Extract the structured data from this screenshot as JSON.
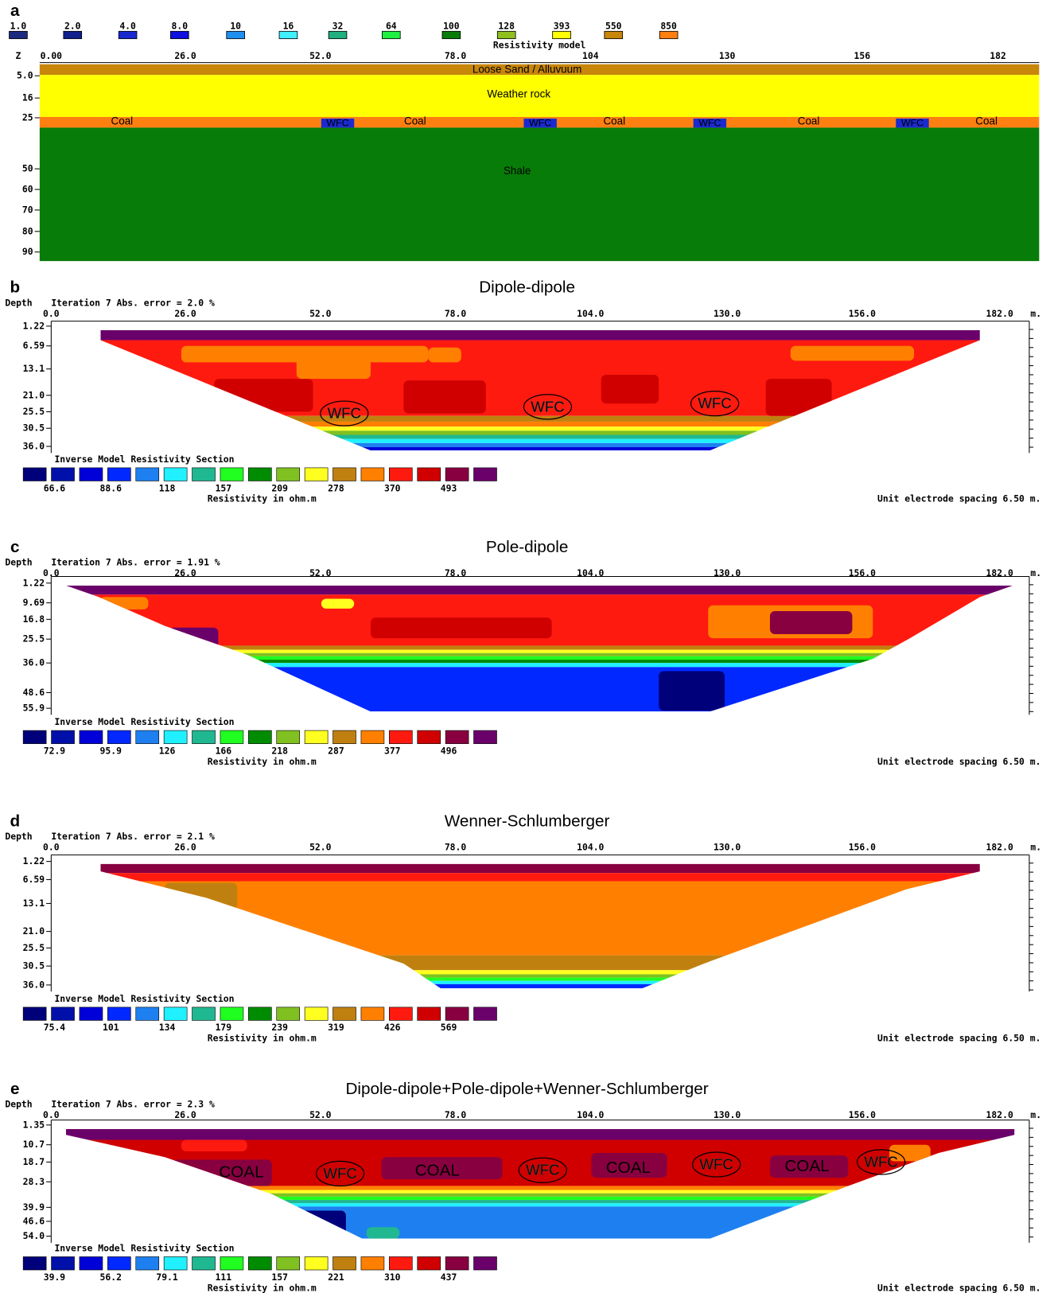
{
  "scale_colors": [
    "#00007a",
    "#0010a8",
    "#0000d8",
    "#0028ff",
    "#1e80f0",
    "#20f0ff",
    "#20b890",
    "#20ff20",
    "#008c00",
    "#80c020",
    "#ffff20",
    "#c08010",
    "#ff8000",
    "#ff1a10",
    "#d00000",
    "#880040",
    "#6a006a"
  ],
  "panel_a": {
    "letter": "a",
    "legend": [
      {
        "label": "1.0",
        "color": "#1c2a80"
      },
      {
        "label": "2.0",
        "color": "#10208c"
      },
      {
        "label": "4.0",
        "color": "#1a2ad0"
      },
      {
        "label": "8.0",
        "color": "#1010e0"
      },
      {
        "label": "10",
        "color": "#2090f0"
      },
      {
        "label": "16",
        "color": "#40f0ff"
      },
      {
        "label": "32",
        "color": "#20b080"
      },
      {
        "label": "64",
        "color": "#20f040"
      },
      {
        "label": "100",
        "color": "#087c08"
      },
      {
        "label": "128",
        "color": "#90c020"
      },
      {
        "label": "393",
        "color": "#ffff00"
      },
      {
        "label": "550",
        "color": "#c8860a"
      },
      {
        "label": "850",
        "color": "#ff8010"
      }
    ],
    "legend_title": "Resistivity model",
    "axis_label": "Z",
    "x_ticks": [
      "0.00",
      "26.0",
      "52.0",
      "78.0",
      "104",
      "130",
      "156",
      "182"
    ],
    "depth_ticks": [
      "5.0",
      "16",
      "25",
      "50",
      "60",
      "70",
      "80",
      "90"
    ],
    "sand": "Loose Sand / Alluvuum",
    "weather": "Weather rock",
    "coal": [
      "Coal",
      "Coal",
      "Coal",
      "Coal",
      "Coal"
    ],
    "wfc": [
      "WFC",
      "WFC",
      "WFC",
      "WFC"
    ],
    "shale": "Shale"
  },
  "panels": [
    {
      "letter": "b",
      "title": "Dipole-dipole",
      "depth_label": "Depth",
      "iteration": "Iteration 7 Abs. error = 2.0 %",
      "x_ticks": [
        "0.0",
        "26.0",
        "52.0",
        "78.0",
        "104.0",
        "130.0",
        "156.0",
        "182.0"
      ],
      "x_unit": "m.",
      "depth_ticks": [
        "1.22",
        "6.59",
        "13.1",
        "21.0",
        "25.5",
        "30.5",
        "36.0"
      ],
      "section_title": "Inverse Model Resistivity Section",
      "scale_labels": [
        "66.6",
        "88.6",
        "118",
        "157",
        "209",
        "278",
        "370",
        "493"
      ],
      "scale_caption": "Resistivity in ohm.m",
      "spacing": "Unit electrode spacing 6.50 m.",
      "wfc_labels": [
        "WFC",
        "WFC",
        "WFC"
      ]
    },
    {
      "letter": "c",
      "title": "Pole-dipole",
      "depth_label": "Depth",
      "iteration": "Iteration 7 Abs. error = 1.91 %",
      "x_ticks": [
        "0.0",
        "26.0",
        "52.0",
        "78.0",
        "104.0",
        "130.0",
        "156.0",
        "182.0"
      ],
      "x_unit": "m.",
      "depth_ticks": [
        "1.22",
        "9.69",
        "16.8",
        "25.5",
        "36.0",
        "48.6",
        "55.9"
      ],
      "section_title": "Inverse Model Resistivity Section",
      "scale_labels": [
        "72.9",
        "95.9",
        "126",
        "166",
        "218",
        "287",
        "377",
        "496"
      ],
      "scale_caption": "Resistivity in ohm.m",
      "spacing": "Unit electrode spacing 6.50 m."
    },
    {
      "letter": "d",
      "title": "Wenner-Schlumberger",
      "depth_label": "Depth",
      "iteration": "Iteration 7 Abs. error = 2.1 %",
      "x_ticks": [
        "0.0",
        "26.0",
        "52.0",
        "78.0",
        "104.0",
        "130.0",
        "156.0",
        "182.0"
      ],
      "x_unit": "m.",
      "depth_ticks": [
        "1.22",
        "6.59",
        "13.1",
        "21.0",
        "25.5",
        "30.5",
        "36.0"
      ],
      "section_title": "Inverse Model Resistivity Section",
      "scale_labels": [
        "75.4",
        "101",
        "134",
        "179",
        "239",
        "319",
        "426",
        "569"
      ],
      "scale_caption": "Resistivity in ohm.m",
      "spacing": "Unit electrode spacing 6.50 m."
    },
    {
      "letter": "e",
      "title": "Dipole-dipole+Pole-dipole+Wenner-Schlumberger",
      "depth_label": "Depth",
      "iteration": "Iteration 7 Abs. error = 2.3 %",
      "x_ticks": [
        "0.0",
        "26.0",
        "52.0",
        "78.0",
        "104.0",
        "130.0",
        "156.0",
        "182.0"
      ],
      "x_unit": "m.",
      "depth_ticks": [
        "1.35",
        "10.7",
        "18.7",
        "28.3",
        "39.9",
        "46.6",
        "54.0"
      ],
      "section_title": "Inverse Model Resistivity Section",
      "scale_labels": [
        "39.9",
        "56.2",
        "79.1",
        "111",
        "157",
        "221",
        "310",
        "437"
      ],
      "scale_caption": "Resistivity in ohm.m",
      "spacing": "Unit electrode spacing 6.50 m.",
      "coal_labels": [
        "COAL",
        "COAL",
        "COAL",
        "COAL"
      ],
      "wfc_labels": [
        "WFC",
        "WFC",
        "WFC",
        "WFC"
      ]
    }
  ]
}
